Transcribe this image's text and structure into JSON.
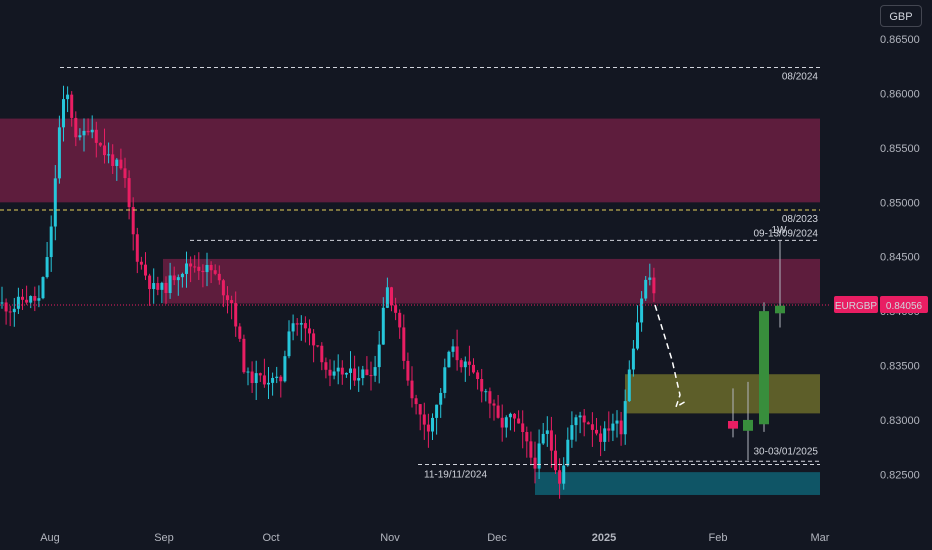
{
  "currency": "GBP",
  "colors": {
    "background": "#131722",
    "up": "#26c6da",
    "down": "#e91e63",
    "supply_zone": "#5e1d3d",
    "demand_zone": "#6b6b2a",
    "target_zone": "#0f5566",
    "weekly_up": "#388e3c",
    "weekly_down": "#e91e63",
    "price_label_bg": "#e91e63"
  },
  "chart_data": {
    "type": "candlestick",
    "symbol": "EURGBP",
    "last_price": "0.84056",
    "ylim": [
      0.8208,
      0.8686
    ],
    "y_ticks": [
      "0.86500",
      "0.86000",
      "0.85500",
      "0.85000",
      "0.84500",
      "0.84000",
      "0.83500",
      "0.83000",
      "0.82500"
    ],
    "x_ticks": [
      "Aug",
      "Sep",
      "Oct",
      "Nov",
      "Dec",
      "2025",
      "Feb",
      "Mar"
    ],
    "zones": [
      {
        "kind": "supply",
        "from": 0.85,
        "to": 0.8577
      },
      {
        "kind": "supply",
        "from": 0.8407,
        "to": 0.8448
      },
      {
        "kind": "demand",
        "from": 0.8306,
        "to": 0.8342
      },
      {
        "kind": "target",
        "from": 0.8231,
        "to": 0.8252
      }
    ],
    "levels": [
      {
        "label": "08/2024",
        "value": 0.8624
      },
      {
        "label": "08/2023",
        "value": 0.8493
      },
      {
        "label": "09-13/09/2024",
        "value": 0.8465
      },
      {
        "label": "11-19/11/2024",
        "value": 0.8259
      },
      {
        "label": "30-03/01/2025",
        "value": 0.8262
      }
    ],
    "timeframe_label": "1W",
    "weekly_candles": [
      {
        "open": 0.8298,
        "high": 0.8298,
        "low": 0.8291,
        "close": 0.8291
      },
      {
        "open": 0.8292,
        "high": 0.8329,
        "low": 0.8284,
        "close": 0.8299
      },
      {
        "open": 0.829,
        "high": 0.8335,
        "low": 0.8263,
        "close": 0.83
      },
      {
        "open": 0.8296,
        "high": 0.8408,
        "low": 0.8289,
        "close": 0.84
      },
      {
        "open": 0.8398,
        "high": 0.8465,
        "low": 0.8385,
        "close": 0.8405
      }
    ]
  }
}
